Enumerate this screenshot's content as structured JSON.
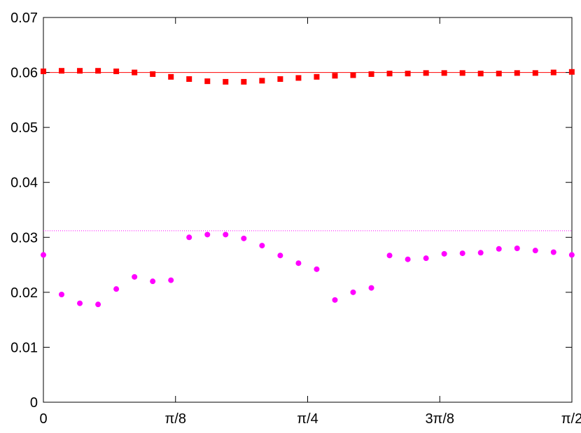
{
  "chart_data": {
    "type": "scatter",
    "title": "",
    "xlabel": "",
    "ylabel": "",
    "xlim": [
      0,
      1.5708
    ],
    "ylim": [
      0,
      0.07
    ],
    "grid": false,
    "legend": "none",
    "x_ticks": [
      {
        "value": 0,
        "label": "0"
      },
      {
        "value": 0.3927,
        "label": "π/8"
      },
      {
        "value": 0.7854,
        "label": "π/4"
      },
      {
        "value": 1.1781,
        "label": "3π/8"
      },
      {
        "value": 1.5708,
        "label": "π/2"
      }
    ],
    "y_ticks": [
      {
        "value": 0,
        "label": "0"
      },
      {
        "value": 0.01,
        "label": "0.01"
      },
      {
        "value": 0.02,
        "label": "0.02"
      },
      {
        "value": 0.03,
        "label": "0.03"
      },
      {
        "value": 0.04,
        "label": "0.04"
      },
      {
        "value": 0.05,
        "label": "0.05"
      },
      {
        "value": 0.06,
        "label": "0.06"
      },
      {
        "value": 0.07,
        "label": "0.07"
      }
    ],
    "reference_lines": [
      {
        "y": 0.06,
        "color": "#ff0000",
        "style": "solid"
      },
      {
        "y": 0.0312,
        "color": "#ff00ff",
        "style": "dotted"
      }
    ],
    "series": [
      {
        "marker": "square",
        "color": "#ff0000",
        "x": [
          0,
          0.0541,
          0.1083,
          0.1625,
          0.2166,
          0.2708,
          0.3249,
          0.3791,
          0.4332,
          0.4874,
          0.5415,
          0.5957,
          0.6499,
          0.704,
          0.7582,
          0.8123,
          0.8665,
          0.9206,
          0.9748,
          1.0289,
          1.0831,
          1.1373,
          1.1914,
          1.2456,
          1.2997,
          1.3539,
          1.408,
          1.4622,
          1.5163,
          1.5705
        ],
        "values": [
          0.0602,
          0.0603,
          0.0603,
          0.0603,
          0.0602,
          0.06,
          0.0597,
          0.0592,
          0.0588,
          0.0584,
          0.0583,
          0.0583,
          0.0585,
          0.0588,
          0.059,
          0.0592,
          0.0594,
          0.0595,
          0.0597,
          0.0598,
          0.0598,
          0.0599,
          0.0599,
          0.0599,
          0.0598,
          0.0598,
          0.0599,
          0.0599,
          0.06,
          0.0601
        ]
      },
      {
        "marker": "circle",
        "color": "#ff00ff",
        "x": [
          0,
          0.0541,
          0.1083,
          0.1625,
          0.2166,
          0.2708,
          0.3249,
          0.3791,
          0.4332,
          0.4874,
          0.5415,
          0.5957,
          0.6499,
          0.704,
          0.7582,
          0.8123,
          0.8665,
          0.9206,
          0.9748,
          1.0289,
          1.0831,
          1.1373,
          1.1914,
          1.2456,
          1.2997,
          1.3539,
          1.408,
          1.4622,
          1.5163,
          1.5705
        ],
        "values": [
          0.0268,
          0.0196,
          0.018,
          0.0178,
          0.0206,
          0.0228,
          0.022,
          0.0222,
          0.03,
          0.0305,
          0.0305,
          0.0298,
          0.0285,
          0.0267,
          0.0253,
          0.0242,
          0.0186,
          0.02,
          0.0208,
          0.0267,
          0.026,
          0.0262,
          0.027,
          0.0271,
          0.0272,
          0.0279,
          0.028,
          0.0276,
          0.0273,
          0.0268
        ]
      }
    ]
  }
}
